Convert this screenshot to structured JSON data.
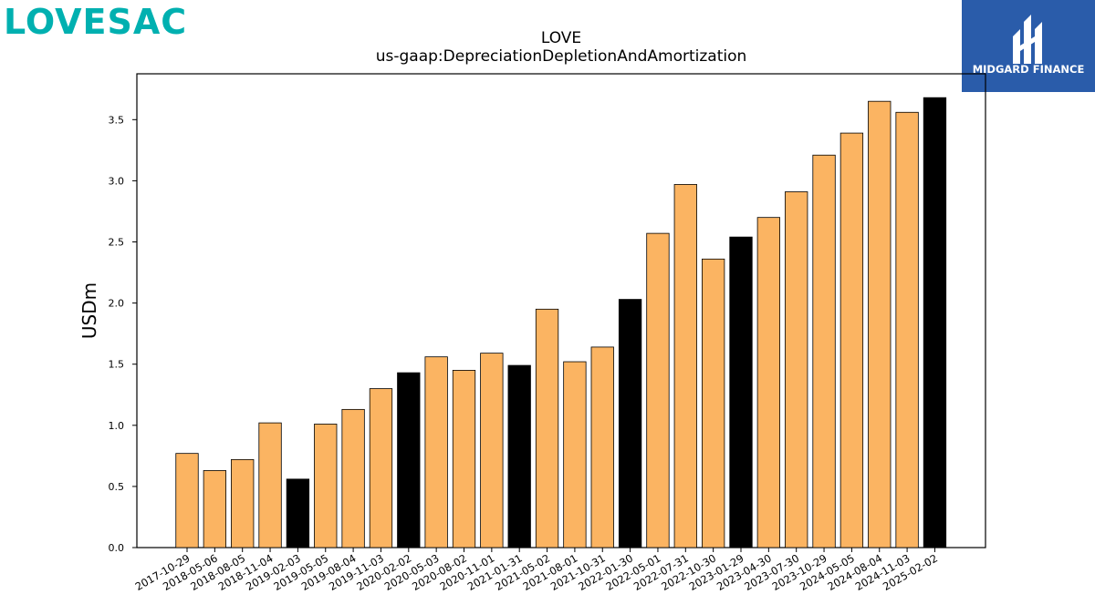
{
  "brand": {
    "logo_text": "LOVESAC",
    "color": "#00b0b0"
  },
  "partner": {
    "name": "MIDGARD FINANCE",
    "bg_color": "#2a5caa",
    "mark_icon": "midgard-mark-icon"
  },
  "colors": {
    "highlight": "#000000",
    "normal": "#fbb462",
    "edge": "#000000"
  },
  "chart_data": {
    "type": "bar",
    "title": "LOVE",
    "subtitle": "us-gaap:DepreciationDepletionAndAmortization",
    "xlabel": "",
    "ylabel": "USDm",
    "ylim": [
      0,
      3.875
    ],
    "yticks": [
      "0.0",
      "0.5",
      "1.0",
      "1.5",
      "2.0",
      "2.5",
      "3.0",
      "3.5"
    ],
    "grid": false,
    "categories": [
      "2017-10-29",
      "2018-05-06",
      "2018-08-05",
      "2018-11-04",
      "2019-02-03",
      "2019-05-05",
      "2019-08-04",
      "2019-11-03",
      "2020-02-02",
      "2020-05-03",
      "2020-08-02",
      "2020-11-01",
      "2021-01-31",
      "2021-05-02",
      "2021-08-01",
      "2021-10-31",
      "2022-01-30",
      "2022-05-01",
      "2022-07-31",
      "2022-10-30",
      "2023-01-29",
      "2023-04-30",
      "2023-07-30",
      "2023-10-29",
      "2024-05-05",
      "2024-08-04",
      "2024-11-03",
      "2025-02-02"
    ],
    "values": [
      0.77,
      0.63,
      0.72,
      1.02,
      0.56,
      1.01,
      1.13,
      1.3,
      1.43,
      1.56,
      1.45,
      1.59,
      1.49,
      1.95,
      1.52,
      1.64,
      2.03,
      2.57,
      2.97,
      2.36,
      2.54,
      2.7,
      2.91,
      3.21,
      3.39,
      3.65,
      3.56,
      3.68
    ],
    "highlight": [
      false,
      false,
      false,
      false,
      true,
      false,
      false,
      false,
      true,
      false,
      false,
      false,
      true,
      false,
      false,
      false,
      true,
      false,
      false,
      false,
      true,
      false,
      false,
      false,
      false,
      false,
      false,
      true
    ]
  }
}
